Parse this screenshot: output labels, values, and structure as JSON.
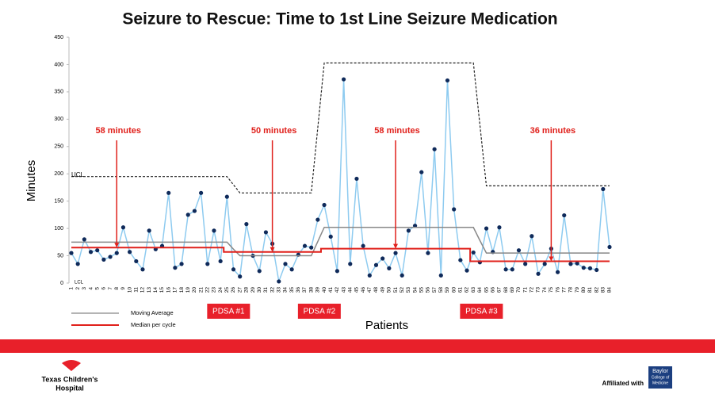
{
  "chart_data": {
    "type": "line",
    "title": "Seizure to Rescue: Time to 1st Line Seizure Medication",
    "x_label": "Patients",
    "y_label": "Minutes",
    "categories": [
      1,
      2,
      3,
      4,
      5,
      6,
      7,
      8,
      9,
      10,
      11,
      12,
      13,
      14,
      15,
      16,
      17,
      18,
      19,
      20,
      21,
      22,
      23,
      24,
      25,
      26,
      27,
      28,
      29,
      30,
      31,
      32,
      33,
      34,
      35,
      36,
      37,
      38,
      39,
      40,
      41,
      42,
      43,
      44,
      45,
      46,
      47,
      48,
      49,
      50,
      51,
      52,
      53,
      54,
      55,
      56,
      57,
      58,
      59,
      60,
      61,
      62,
      63,
      64,
      65,
      66,
      67,
      68,
      69,
      70,
      71,
      72,
      73,
      74,
      75,
      76,
      77,
      78,
      79,
      80,
      81,
      82,
      83,
      84
    ],
    "ylim": [
      0,
      450
    ],
    "yticks": [
      0,
      50,
      100,
      150,
      200,
      250,
      300,
      350,
      400,
      450
    ],
    "series": [
      {
        "color": "#8ecbf0",
        "marker_color": "#0f2a5a",
        "values": [
          55,
          35,
          80,
          57,
          60,
          43,
          48,
          55,
          102,
          57,
          40,
          25,
          96,
          62,
          68,
          165,
          28,
          35,
          125,
          132,
          165,
          35,
          96,
          40,
          158,
          25,
          12,
          108,
          50,
          22,
          93,
          72,
          3,
          35,
          25,
          52,
          68,
          65,
          116,
          143,
          85,
          22,
          373,
          35,
          191,
          68,
          14,
          33,
          45,
          27,
          55,
          14,
          96,
          105,
          203,
          55,
          245,
          14,
          371,
          135,
          42,
          23,
          56,
          38,
          100,
          57,
          102,
          25,
          25,
          60,
          35,
          86,
          17,
          35,
          63,
          20,
          124,
          35,
          36,
          28,
          27,
          24,
          172,
          66
        ]
      },
      {
        "name": "UCL",
        "color": "#222222",
        "dashed": true,
        "values": [
          195,
          195,
          195,
          195,
          195,
          195,
          195,
          195,
          195,
          195,
          195,
          195,
          195,
          195,
          195,
          195,
          195,
          195,
          195,
          195,
          195,
          195,
          195,
          195,
          195,
          180,
          165,
          165,
          165,
          165,
          165,
          165,
          165,
          165,
          165,
          165,
          165,
          165,
          284,
          403,
          403,
          403,
          403,
          403,
          403,
          403,
          403,
          403,
          403,
          403,
          403,
          403,
          403,
          403,
          403,
          403,
          403,
          403,
          403,
          403,
          403,
          403,
          403,
          290,
          178,
          178,
          178,
          178,
          178,
          178,
          178,
          178,
          178,
          178,
          178,
          178,
          178,
          178,
          178,
          178,
          178,
          178,
          178,
          178
        ]
      },
      {
        "name": "Moving Average",
        "color": "#888888",
        "legend": true,
        "values": [
          75,
          75,
          75,
          75,
          75,
          75,
          75,
          75,
          75,
          75,
          75,
          75,
          75,
          75,
          75,
          75,
          75,
          75,
          75,
          75,
          75,
          75,
          75,
          75,
          75,
          62,
          50,
          50,
          50,
          50,
          50,
          50,
          50,
          50,
          50,
          50,
          50,
          50,
          76,
          102,
          102,
          102,
          102,
          102,
          102,
          102,
          102,
          102,
          102,
          102,
          102,
          102,
          102,
          102,
          102,
          102,
          102,
          102,
          102,
          102,
          102,
          102,
          102,
          78,
          55,
          55,
          55,
          55,
          55,
          55,
          55,
          55,
          55,
          55,
          55,
          55,
          55,
          55,
          55,
          55,
          55,
          55,
          55,
          55
        ]
      },
      {
        "name": "Median per cycle",
        "color": "#e0201b",
        "legend": true,
        "step": true,
        "values": [
          65,
          65,
          65,
          65,
          65,
          65,
          65,
          65,
          65,
          65,
          65,
          65,
          65,
          65,
          65,
          65,
          65,
          65,
          65,
          65,
          65,
          65,
          65,
          65,
          57,
          57,
          57,
          57,
          57,
          57,
          57,
          57,
          57,
          57,
          57,
          57,
          57,
          57,
          57,
          63,
          63,
          63,
          63,
          63,
          63,
          63,
          63,
          63,
          63,
          63,
          63,
          63,
          63,
          63,
          63,
          63,
          63,
          63,
          63,
          63,
          63,
          63,
          40,
          40,
          40,
          40,
          40,
          40,
          40,
          40,
          40,
          40,
          40,
          40,
          40,
          40,
          40,
          40,
          40,
          40,
          40,
          40,
          40,
          40
        ]
      }
    ],
    "lcl_label": "LCL",
    "annotations": [
      {
        "text": "58 minutes",
        "x": 8
      },
      {
        "text": "50 minutes",
        "x": 32
      },
      {
        "text": "58 minutes",
        "x": 51
      },
      {
        "text": "36  minutes",
        "x": 75
      }
    ],
    "phases": [
      {
        "label": "PDSA #1",
        "x": 25
      },
      {
        "label": "PDSA #2",
        "x": 39
      },
      {
        "label": "PDSA #3",
        "x": 64
      }
    ]
  },
  "footer": {
    "left_logo": [
      "Texas Children's",
      "Hospital"
    ],
    "affiliation": "Affiliated with",
    "right_logo": [
      "Baylor",
      "College of",
      "Medicine"
    ]
  }
}
